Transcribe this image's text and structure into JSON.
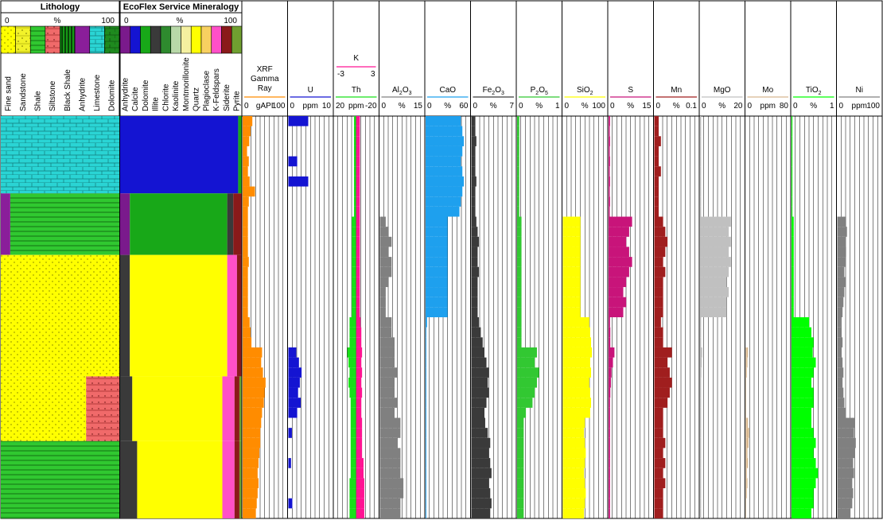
{
  "lithology": {
    "title": "Lithology",
    "scale": {
      "min": "0",
      "mid": "%",
      "max": "100"
    },
    "legend": [
      {
        "label": "Fine sand",
        "key": "finesand"
      },
      {
        "label": "Sandstone",
        "key": "sandstone"
      },
      {
        "label": "Shale",
        "key": "shale"
      },
      {
        "label": "Siltstone",
        "key": "siltstone"
      },
      {
        "label": "Black Shale",
        "key": "blackshale"
      },
      {
        "label": "Anhydrite",
        "key": "anhydrite"
      },
      {
        "label": "Limestone",
        "key": "limestone"
      },
      {
        "label": "Dolomite",
        "key": "dolomite"
      }
    ],
    "intervals": [
      {
        "top": 0,
        "base": 98,
        "parts": [
          [
            "limestone",
            100
          ]
        ]
      },
      {
        "top": 98,
        "base": 176,
        "parts": [
          [
            "anhydrite",
            8
          ],
          [
            "shale",
            92
          ]
        ]
      },
      {
        "top": 176,
        "base": 330,
        "parts": [
          [
            "finesand",
            100
          ]
        ]
      },
      {
        "top": 330,
        "base": 412,
        "parts": [
          [
            "finesand",
            72
          ],
          [
            "siltstone",
            28
          ]
        ]
      },
      {
        "top": 412,
        "base": 510,
        "parts": [
          [
            "shale",
            100
          ]
        ]
      }
    ]
  },
  "mineralogy": {
    "title": "EcoFlex Service Mineralogy",
    "scale": {
      "min": "0",
      "mid": "%",
      "max": "100"
    },
    "legend": [
      {
        "label": "Anhydrite",
        "color": "#7a1a8c"
      },
      {
        "label": "Calcite",
        "color": "#1414d2"
      },
      {
        "label": "Dolomite",
        "color": "#18a818"
      },
      {
        "label": "Illite",
        "color": "#3a3a3a"
      },
      {
        "label": "Chlorite",
        "color": "#2e8a2e"
      },
      {
        "label": "Kaolinite",
        "color": "#b8d8a8"
      },
      {
        "label": "Montmorillonite",
        "color": "#f4f0a0"
      },
      {
        "label": "Quartz",
        "color": "#ffff00"
      },
      {
        "label": "Plagioclase",
        "color": "#f8d060"
      },
      {
        "label": "K-Feldspars",
        "color": "#ff50c8"
      },
      {
        "label": "Siderite",
        "color": "#8a1a1a"
      },
      {
        "label": "Pyrite",
        "color": "#70a030"
      }
    ]
  },
  "tracks": [
    {
      "name": "XRF Gamma Ray",
      "title_lines": [
        "XRF",
        "Gamma",
        "Ray"
      ],
      "scale": [
        "0",
        "gAPI",
        "100"
      ],
      "color": "#ff8c00",
      "type": "fill"
    },
    {
      "name": "U",
      "title_lines": [
        "U"
      ],
      "scale": [
        "0",
        "ppm",
        "10"
      ],
      "color": "#1414d2",
      "type": "bar"
    },
    {
      "name": "Th",
      "title_lines": [
        "Th"
      ],
      "scale": [
        "20",
        "ppm",
        "-20"
      ],
      "color": "#18e018",
      "type": "dual",
      "k_label": "K",
      "k_scale": [
        "-3",
        "3"
      ],
      "k_color": "#ff1493"
    },
    {
      "name": "Al2O3",
      "title_lines": [
        "Al",
        "2",
        "O",
        "3"
      ],
      "scale": [
        "0",
        "%",
        "15"
      ],
      "color": "#808080",
      "type": "fill"
    },
    {
      "name": "CaO",
      "title_lines": [
        "CaO"
      ],
      "scale": [
        "0",
        "%",
        "60"
      ],
      "color": "#1ea0ee",
      "type": "fill"
    },
    {
      "name": "Fe2O3",
      "title_lines": [
        "Fe",
        "2",
        "O",
        "3"
      ],
      "scale": [
        "0",
        "%",
        "7"
      ],
      "color": "#3a3a3a",
      "type": "fill"
    },
    {
      "name": "P2O5",
      "title_lines": [
        "P",
        "2",
        "O",
        "5"
      ],
      "scale": [
        "0",
        "%",
        "1"
      ],
      "color": "#32c832",
      "type": "fill"
    },
    {
      "name": "SiO2",
      "title_lines": [
        "SiO",
        "2"
      ],
      "scale": [
        "0",
        "%",
        "100"
      ],
      "color": "#ffff00",
      "type": "fill"
    },
    {
      "name": "S",
      "title_lines": [
        "S"
      ],
      "scale": [
        "0",
        "%",
        "15"
      ],
      "color": "#c8147a",
      "type": "fill"
    },
    {
      "name": "Mn",
      "title_lines": [
        "Mn"
      ],
      "scale": [
        "0",
        "%",
        "0.1"
      ],
      "color": "#a01e1e",
      "type": "fill"
    },
    {
      "name": "MgO",
      "title_lines": [
        "MgO"
      ],
      "scale": [
        "0",
        "%",
        "20"
      ],
      "color": "#c0c0c0",
      "type": "fill"
    },
    {
      "name": "Mo",
      "title_lines": [
        "Mo"
      ],
      "scale": [
        "0",
        "ppm",
        "80"
      ],
      "color": "#d8b890",
      "type": "fill"
    },
    {
      "name": "TiO2",
      "title_lines": [
        "TiO",
        "2"
      ],
      "scale": [
        "0",
        "%",
        "1"
      ],
      "color": "#00ff00",
      "type": "fill"
    },
    {
      "name": "Ni",
      "title_lines": [
        "Ni"
      ],
      "scale": [
        "0",
        "ppm",
        "100"
      ],
      "color": "#808080",
      "type": "fill"
    }
  ],
  "chart_data": {
    "type": "area",
    "depth_samples": 40,
    "series": [
      {
        "name": "XRF Gamma Ray",
        "values": [
          22,
          18,
          15,
          10,
          14,
          12,
          16,
          28,
          14,
          12,
          12,
          12,
          12,
          12,
          14,
          12,
          12,
          12,
          12,
          12,
          16,
          18,
          20,
          44,
          42,
          46,
          52,
          50,
          48,
          44,
          42,
          40,
          40,
          38,
          36,
          34,
          36,
          34,
          32,
          30
        ]
      },
      {
        "name": "U",
        "values": [
          4.5,
          0,
          0,
          0,
          2,
          0,
          4.5,
          0,
          0,
          0,
          0,
          0,
          0,
          0,
          0,
          0,
          0,
          0,
          0,
          0,
          0,
          0,
          0,
          1.8,
          2.4,
          3,
          2.6,
          2.2,
          2.8,
          2,
          0,
          0.8,
          0,
          0,
          0.6,
          0,
          0,
          0,
          0.9,
          0
        ]
      },
      {
        "name": "Al2O3",
        "values": [
          0,
          0,
          0,
          0,
          0,
          0,
          0,
          0,
          0,
          0,
          2,
          3,
          4,
          3,
          4,
          4,
          3,
          2,
          2,
          2,
          4,
          4,
          5,
          5,
          5,
          6,
          5,
          5,
          6,
          5,
          7,
          7,
          6,
          7,
          7,
          7,
          8,
          8,
          7,
          7
        ]
      },
      {
        "name": "CaO",
        "values": [
          48,
          50,
          52,
          50,
          48,
          50,
          52,
          50,
          48,
          46,
          30,
          30,
          30,
          30,
          30,
          30,
          30,
          30,
          30,
          30,
          2,
          1,
          1,
          1,
          1,
          1,
          1,
          1,
          1,
          1,
          1,
          1,
          1,
          1,
          1,
          1,
          1,
          1,
          1,
          1
        ]
      },
      {
        "name": "Fe2O3",
        "values": [
          0.6,
          0.6,
          0.8,
          0.6,
          0.6,
          0.6,
          0.8,
          0.6,
          0.6,
          0.6,
          0.8,
          1,
          1.2,
          1,
          1,
          1.2,
          1,
          1,
          1,
          1,
          1.2,
          1.5,
          1.8,
          2,
          2.4,
          2.8,
          2.6,
          2.8,
          2.4,
          2,
          2.2,
          2.6,
          3,
          2.8,
          3,
          3.2,
          2.8,
          3,
          3.2,
          3
        ]
      },
      {
        "name": "P2O5",
        "values": [
          0.05,
          0.05,
          0.05,
          0.05,
          0.05,
          0.05,
          0.05,
          0.05,
          0.05,
          0.05,
          0.1,
          0.1,
          0.1,
          0.1,
          0.1,
          0.1,
          0.1,
          0.1,
          0.1,
          0.1,
          0.1,
          0.1,
          0.1,
          0.45,
          0.4,
          0.5,
          0.45,
          0.4,
          0.35,
          0.2,
          0.15,
          0.15,
          0.15,
          0.15,
          0.15,
          0.15,
          0.15,
          0.15,
          0.15,
          0.15
        ]
      },
      {
        "name": "SiO2",
        "values": [
          0,
          0,
          0,
          0,
          0,
          0,
          0,
          0,
          0,
          0,
          40,
          40,
          40,
          40,
          40,
          40,
          40,
          40,
          40,
          40,
          60,
          62,
          64,
          66,
          62,
          64,
          60,
          62,
          64,
          62,
          50,
          48,
          50,
          52,
          50,
          48,
          50,
          52,
          50,
          48
        ]
      },
      {
        "name": "S",
        "values": [
          0.5,
          0.4,
          0.5,
          0.4,
          0.5,
          0.4,
          0.5,
          0.4,
          0.5,
          0.4,
          8,
          7,
          6,
          7,
          8,
          7,
          6,
          5,
          6,
          5,
          0.5,
          0.6,
          0.6,
          2,
          1.5,
          1,
          0.8,
          0.6,
          0.5,
          0.5,
          0.5,
          0.5,
          0.5,
          0.5,
          0.5,
          0.5,
          0.5,
          0.5,
          0.5,
          0.5
        ]
      },
      {
        "name": "Mn",
        "values": [
          0.01,
          0.01,
          0.015,
          0.01,
          0.01,
          0.015,
          0.01,
          0.01,
          0.01,
          0.01,
          0.02,
          0.025,
          0.03,
          0.025,
          0.02,
          0.025,
          0.02,
          0.02,
          0.02,
          0.02,
          0.015,
          0.02,
          0.02,
          0.04,
          0.03,
          0.035,
          0.04,
          0.035,
          0.03,
          0.02,
          0.02,
          0.02,
          0.025,
          0.02,
          0.025,
          0.02,
          0.025,
          0.02,
          0.02,
          0.02
        ]
      },
      {
        "name": "MgO",
        "values": [
          0.5,
          0.5,
          0.5,
          0.5,
          0.5,
          0.5,
          0.5,
          0.5,
          0.5,
          0.5,
          14,
          13,
          14,
          13,
          14,
          13,
          12,
          13,
          12,
          12,
          0.5,
          0.5,
          0.5,
          1,
          0.8,
          0.6,
          0.5,
          0.5,
          0.5,
          0.5,
          0.5,
          0.5,
          0.5,
          0.5,
          0.5,
          0.5,
          0.5,
          0.5,
          0.5,
          0.5
        ]
      },
      {
        "name": "Mo",
        "values": [
          0,
          0,
          0,
          0,
          0,
          0,
          0,
          0,
          0,
          0,
          0,
          0,
          0,
          0,
          0,
          0,
          0,
          0,
          0,
          0,
          0,
          0,
          0,
          4,
          3,
          2,
          1,
          1,
          1,
          1,
          4,
          6,
          5,
          3,
          4,
          2,
          3,
          2,
          1,
          1
        ]
      },
      {
        "name": "TiO2",
        "values": [
          0.02,
          0.02,
          0.02,
          0.02,
          0.02,
          0.02,
          0.02,
          0.02,
          0.02,
          0.02,
          0.05,
          0.05,
          0.05,
          0.05,
          0.05,
          0.05,
          0.05,
          0.05,
          0.05,
          0.05,
          0.4,
          0.45,
          0.5,
          0.48,
          0.55,
          0.5,
          0.45,
          0.5,
          0.5,
          0.45,
          0.45,
          0.5,
          0.55,
          0.5,
          0.55,
          0.6,
          0.55,
          0.5,
          0.5,
          0.45
        ]
      },
      {
        "name": "Ni",
        "values": [
          0,
          0,
          0,
          0,
          0,
          0,
          0,
          0,
          0,
          0,
          20,
          22,
          18,
          20,
          18,
          16,
          18,
          16,
          14,
          12,
          8,
          10,
          12,
          10,
          12,
          14,
          12,
          14,
          16,
          18,
          40,
          38,
          42,
          40,
          36,
          38,
          34,
          36,
          34,
          30
        ]
      },
      {
        "name": "Th",
        "values": [
          2,
          2,
          2,
          2,
          2,
          2,
          2,
          2,
          2,
          2,
          4,
          4,
          4,
          4,
          4,
          4,
          4,
          4,
          4,
          4,
          6,
          6,
          6,
          8,
          7,
          6,
          7,
          6,
          5,
          5,
          5,
          5,
          5,
          5,
          5,
          5,
          6,
          6,
          6,
          6
        ]
      },
      {
        "name": "K",
        "values": [
          0.5,
          0.5,
          0.5,
          0.5,
          0.5,
          0.5,
          0.5,
          0.5,
          0.5,
          0.5,
          0.5,
          0.5,
          0.5,
          0.5,
          0.5,
          0.5,
          0.5,
          0.5,
          0.5,
          0.5,
          0.6,
          0.7,
          0.7,
          0.8,
          0.7,
          0.8,
          0.7,
          0.8,
          0.7,
          0.7,
          0.8,
          0.8,
          0.8,
          0.8,
          1,
          1,
          1.1,
          1.1,
          1.1,
          1.1
        ]
      }
    ]
  }
}
